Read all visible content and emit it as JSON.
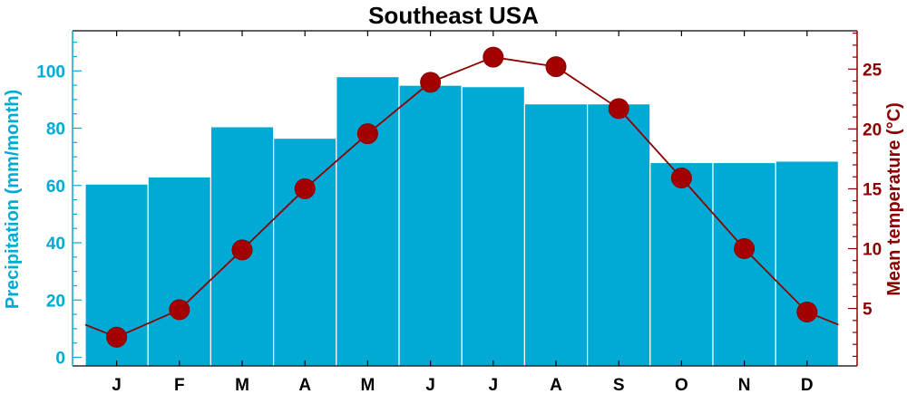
{
  "chart_data": {
    "type": "bar",
    "title": "Southeast USA",
    "categories": [
      "J",
      "F",
      "M",
      "A",
      "M",
      "J",
      "J",
      "A",
      "S",
      "O",
      "N",
      "D"
    ],
    "series": [
      {
        "name": "Precipitation",
        "type": "bar",
        "axis": "left",
        "values": [
          60.5,
          63,
          80.5,
          76.5,
          98,
          95,
          94.5,
          88.5,
          88.5,
          68,
          68,
          68.5
        ]
      },
      {
        "name": "Mean temperature",
        "type": "line",
        "axis": "right",
        "values": [
          2.6,
          4.9,
          9.9,
          15.0,
          19.6,
          23.9,
          26.0,
          25.2,
          21.7,
          15.9,
          10.0,
          4.7
        ]
      }
    ],
    "ylabel_left": "Precipitation (mm/month)",
    "ylabel_right": "Mean temperature (°C)",
    "ylim_left": [
      -3,
      114
    ],
    "ylim_right": [
      0.2,
      28.2
    ],
    "yticks_left": [
      0,
      20,
      40,
      60,
      80,
      100
    ],
    "yticks_right": [
      5,
      10,
      15,
      20,
      25
    ],
    "colors": {
      "bar": "#00aad4",
      "left_axis": "#00aad4",
      "line": "#8b0000",
      "marker": "#a30000",
      "right_axis": "#8b0000",
      "frame": "#000000"
    }
  }
}
